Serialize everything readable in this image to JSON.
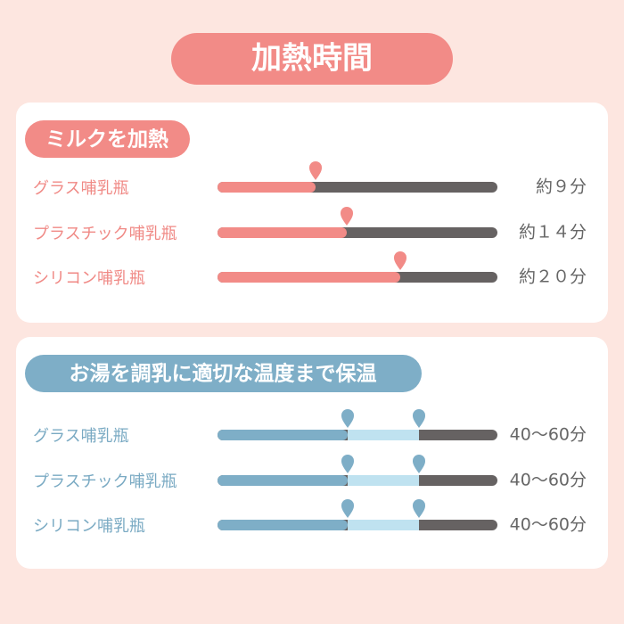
{
  "title": "加熱時間",
  "sections": [
    {
      "heading": "ミルクを加熱",
      "rows": [
        {
          "label": "グラス哺乳瓶",
          "time": "約９分"
        },
        {
          "label": "プラスチック哺乳瓶",
          "time": "約１４分"
        },
        {
          "label": "シリコン哺乳瓶",
          "time": "約２０分"
        }
      ]
    },
    {
      "heading": "お湯を調乳に適切な温度まで保温",
      "rows": [
        {
          "label": "グラス哺乳瓶",
          "time": "40〜60分"
        },
        {
          "label": "プラスチック哺乳瓶",
          "time": "40〜60分"
        },
        {
          "label": "シリコン哺乳瓶",
          "time": "40〜60分"
        }
      ]
    }
  ]
}
